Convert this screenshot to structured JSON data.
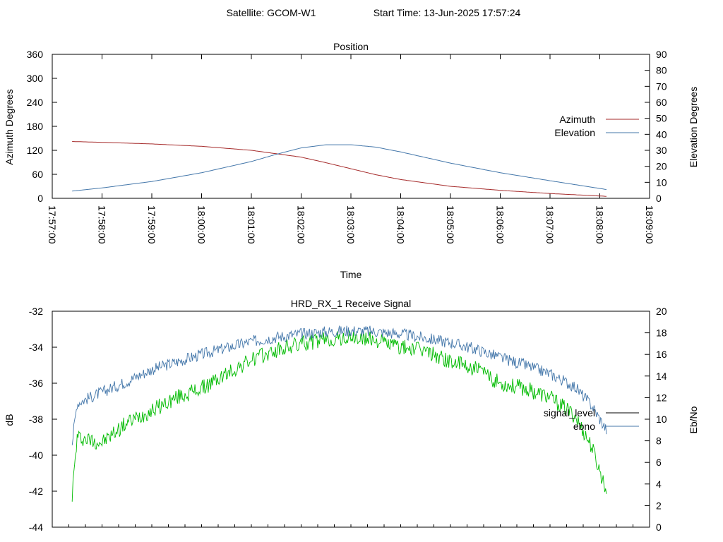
{
  "header": {
    "satellite_text": "Satellite: GCOM-W1",
    "start_text": "Start Time: 13-Jun-2025 17:57:24"
  },
  "chart_data": [
    {
      "type": "line",
      "title": "Position",
      "xlabel": "Time",
      "ylabel": "Azimuth Degrees",
      "y2label": "Elevation Degrees",
      "x_ticks": [
        "17:57:00",
        "17:58:00",
        "17:59:00",
        "18:00:00",
        "18:01:00",
        "18:02:00",
        "18:03:00",
        "18:04:00",
        "18:05:00",
        "18:06:00",
        "18:07:00",
        "18:08:00",
        "18:09:00"
      ],
      "xlim": [
        "17:57:00",
        "18:09:00"
      ],
      "ylim": [
        0,
        360
      ],
      "y_ticks": [
        0,
        60,
        120,
        180,
        240,
        300,
        360
      ],
      "y2lim": [
        0,
        90
      ],
      "y2_ticks": [
        0,
        10,
        20,
        30,
        40,
        50,
        60,
        70,
        80,
        90
      ],
      "grid": false,
      "legend_position": "right",
      "series": [
        {
          "name": "Azimuth",
          "axis": "left",
          "color": "#a52a2a",
          "x": [
            "17:57:24",
            "17:58:00",
            "17:59:00",
            "18:00:00",
            "18:01:00",
            "18:02:00",
            "18:02:30",
            "18:03:00",
            "18:03:30",
            "18:04:00",
            "18:05:00",
            "18:06:00",
            "18:07:00",
            "18:08:08"
          ],
          "values": [
            142,
            140,
            136,
            130,
            120,
            103,
            89,
            74,
            59,
            47,
            30,
            20,
            12,
            5
          ]
        },
        {
          "name": "Elevation",
          "axis": "right",
          "color": "#4477aa",
          "x": [
            "17:57:24",
            "17:58:00",
            "17:59:00",
            "18:00:00",
            "18:01:00",
            "18:01:30",
            "18:02:00",
            "18:02:30",
            "18:03:00",
            "18:03:30",
            "18:04:00",
            "18:05:00",
            "18:06:00",
            "18:07:00",
            "18:08:08"
          ],
          "values": [
            4.5,
            6.5,
            10.5,
            16,
            23,
            27.5,
            31.5,
            33.5,
            33.5,
            32,
            29,
            22,
            16,
            11,
            5.5
          ]
        }
      ]
    },
    {
      "type": "line",
      "title": "HRD_RX_1 Receive Signal",
      "xlabel": "",
      "ylabel": "dB",
      "y2label": "Eb/No",
      "ylim": [
        -44,
        -32
      ],
      "y_ticks": [
        -44,
        -42,
        -40,
        -38,
        -36,
        -34,
        -32
      ],
      "y2lim": [
        0,
        20
      ],
      "y2_ticks": [
        0,
        2,
        4,
        6,
        8,
        10,
        12,
        14,
        16,
        18,
        20
      ],
      "xlim": [
        "17:57:00",
        "18:09:00"
      ],
      "x_minor_ticks_seconds": 20,
      "grid": false,
      "legend_position": "right",
      "series": [
        {
          "name": "signal_level",
          "axis": "left",
          "color": "#00bb00",
          "x": [
            "17:57:24",
            "17:57:30",
            "17:58:00",
            "17:58:30",
            "17:59:00",
            "17:59:30",
            "18:00:00",
            "18:00:30",
            "18:01:00",
            "18:01:30",
            "18:02:00",
            "18:02:30",
            "18:03:00",
            "18:03:30",
            "18:04:00",
            "18:04:30",
            "18:05:00",
            "18:05:30",
            "18:06:00",
            "18:06:30",
            "18:07:00",
            "18:07:30",
            "18:07:50",
            "18:08:08"
          ],
          "values": [
            -42.2,
            -39.0,
            -39.3,
            -38.2,
            -37.5,
            -36.8,
            -36.3,
            -35.5,
            -34.7,
            -34.2,
            -33.8,
            -33.6,
            -33.5,
            -33.6,
            -34.0,
            -34.2,
            -34.8,
            -35.2,
            -36.0,
            -36.3,
            -36.8,
            -37.8,
            -39.5,
            -42.0
          ]
        },
        {
          "name": "ebno",
          "axis": "right",
          "color": "#4477aa",
          "x": [
            "17:57:24",
            "17:57:30",
            "17:58:00",
            "17:58:30",
            "17:59:00",
            "17:59:30",
            "18:00:00",
            "18:00:30",
            "18:01:00",
            "18:01:30",
            "18:02:00",
            "18:02:30",
            "18:03:00",
            "18:03:30",
            "18:04:00",
            "18:04:30",
            "18:05:00",
            "18:05:30",
            "18:06:00",
            "18:06:30",
            "18:07:00",
            "18:07:30",
            "18:07:50",
            "18:08:08"
          ],
          "values": [
            7.8,
            11.5,
            12.5,
            13.5,
            14.6,
            15.3,
            16.0,
            16.6,
            17.2,
            17.6,
            17.9,
            18.1,
            18.2,
            18.1,
            17.9,
            17.5,
            17.1,
            16.5,
            15.7,
            15.0,
            14.2,
            13.0,
            11.3,
            9.0
          ]
        }
      ]
    }
  ]
}
